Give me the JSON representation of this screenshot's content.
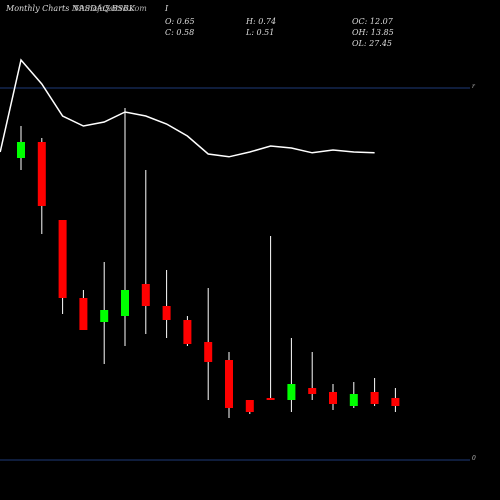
{
  "header": {
    "title": "Monthly Charts NASDAQ:BSBK",
    "site": "MunafaSutra.com",
    "marker": "I",
    "open": "O: 0.65",
    "close": "C: 0.58",
    "high": "H: 0.74",
    "low": "L: 0.51",
    "oc": "OC: 12.07",
    "oh": "OH: 13.85",
    "ol": "OL: 27.45"
  },
  "colors": {
    "background": "#000000",
    "bull": "#00ff00",
    "bear": "#ff0000",
    "wick_bull": "#ffffff",
    "wick_bear": "#ffffff",
    "ma_line": "#ffffff",
    "ref_line": "#1e3a78"
  },
  "chart_data": {
    "type": "candlestick",
    "y_tick_labels": [
      "r",
      "0"
    ],
    "reference_levels": [
      {
        "label": "r",
        "value": 9.3
      },
      {
        "label": "0",
        "value": 0
      }
    ],
    "ylim": [
      0,
      10.5
    ],
    "candles": [
      {
        "open": 7.55,
        "high": 8.35,
        "low": 7.25,
        "close": 7.95
      },
      {
        "open": 7.95,
        "high": 8.05,
        "low": 5.65,
        "close": 6.35
      },
      {
        "open": 6.0,
        "high": 6.0,
        "low": 3.65,
        "close": 4.05
      },
      {
        "open": 4.05,
        "high": 4.25,
        "low": 3.35,
        "close": 3.25
      },
      {
        "open": 3.45,
        "high": 4.95,
        "low": 2.4,
        "close": 3.75
      },
      {
        "open": 3.6,
        "high": 8.8,
        "low": 2.85,
        "close": 4.25
      },
      {
        "open": 4.4,
        "high": 7.25,
        "low": 3.15,
        "close": 3.85
      },
      {
        "open": 3.85,
        "high": 4.75,
        "low": 3.05,
        "close": 3.5
      },
      {
        "open": 3.5,
        "high": 3.6,
        "low": 2.85,
        "close": 2.9
      },
      {
        "open": 2.95,
        "high": 4.3,
        "low": 1.5,
        "close": 2.45
      },
      {
        "open": 2.5,
        "high": 2.7,
        "low": 1.05,
        "close": 1.3
      },
      {
        "open": 1.5,
        "high": 1.5,
        "low": 1.15,
        "close": 1.2
      },
      {
        "open": 1.55,
        "high": 5.6,
        "low": 1.5,
        "close": 1.5
      },
      {
        "open": 1.5,
        "high": 3.05,
        "low": 1.2,
        "close": 1.9
      },
      {
        "open": 1.8,
        "high": 2.7,
        "low": 1.5,
        "close": 1.65
      },
      {
        "open": 1.7,
        "high": 1.9,
        "low": 1.25,
        "close": 1.4
      },
      {
        "open": 1.35,
        "high": 1.95,
        "low": 1.3,
        "close": 1.65
      },
      {
        "open": 1.7,
        "high": 2.05,
        "low": 1.35,
        "close": 1.4
      },
      {
        "open": 1.55,
        "high": 1.8,
        "low": 1.2,
        "close": 1.35
      }
    ],
    "moving_average": [
      7.7,
      10.0,
      9.4,
      8.6,
      8.35,
      8.45,
      8.7,
      8.6,
      8.4,
      8.1,
      7.65,
      7.58,
      7.7,
      7.85,
      7.8,
      7.68,
      7.75,
      7.7,
      7.68
    ],
    "ma_x_start_offset": -1
  }
}
